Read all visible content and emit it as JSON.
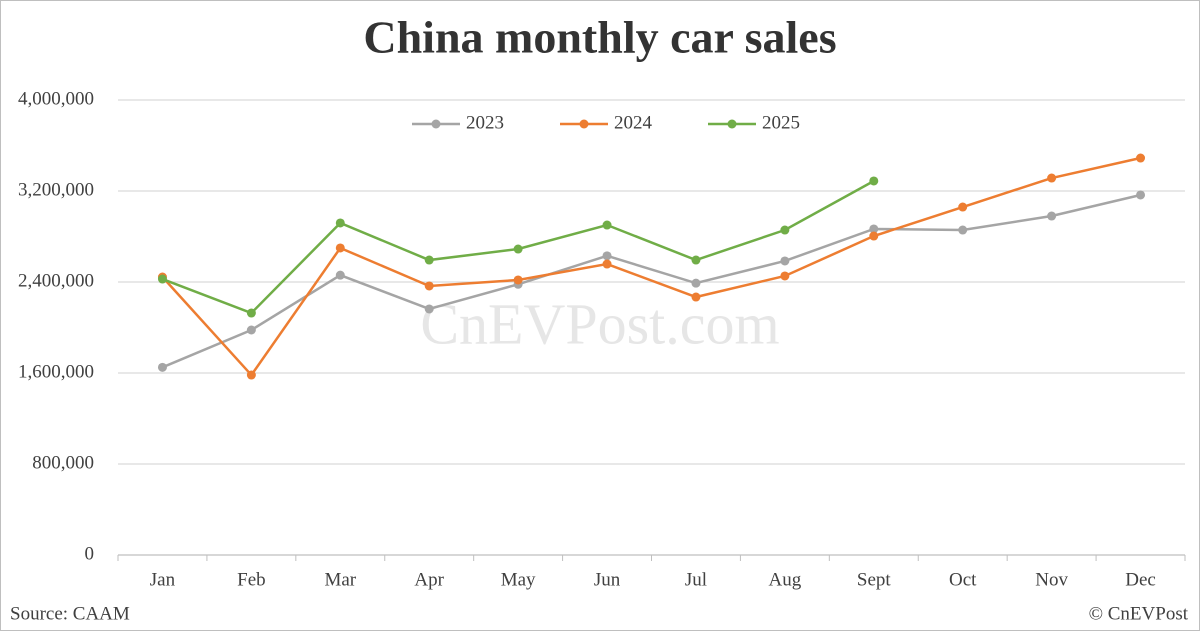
{
  "chart_data": {
    "type": "line",
    "title": "China monthly car sales",
    "watermark": "CnEVPost.com",
    "source": "Source: CAAM",
    "credit": "© CnEVPost",
    "categories": [
      "Jan",
      "Feb",
      "Mar",
      "Apr",
      "May",
      "Jun",
      "Jul",
      "Aug",
      "Sept",
      "Oct",
      "Nov",
      "Dec"
    ],
    "series": [
      {
        "name": "2023",
        "color": "#a5a5a5",
        "values": [
          1650000,
          1978000,
          2460000,
          2163000,
          2380000,
          2630000,
          2390000,
          2585000,
          2866000,
          2857000,
          2980000,
          3165000
        ]
      },
      {
        "name": "2024",
        "color": "#ed7d31",
        "values": [
          2444000,
          1582000,
          2699000,
          2365000,
          2418000,
          2558000,
          2268000,
          2453000,
          2804000,
          3059000,
          3314000,
          3490000
        ]
      },
      {
        "name": "2025",
        "color": "#70ad47",
        "values": [
          2426000,
          2127000,
          2919000,
          2593000,
          2690000,
          2901000,
          2593000,
          2857000,
          3288000,
          null,
          null,
          null
        ]
      }
    ],
    "ylim": [
      0,
      4000000
    ],
    "yticks": [
      0,
      {
        "value": 800000,
        "label": "800,000"
      },
      {
        "value": 1600000,
        "label": "1,600,000"
      },
      {
        "value": 2400000,
        "label": "2,400,000"
      },
      {
        "value": 3200000,
        "label": "3,200,000"
      },
      {
        "value": 4000000,
        "label": "4,000,000"
      }
    ],
    "grid": true,
    "legend": "top"
  }
}
